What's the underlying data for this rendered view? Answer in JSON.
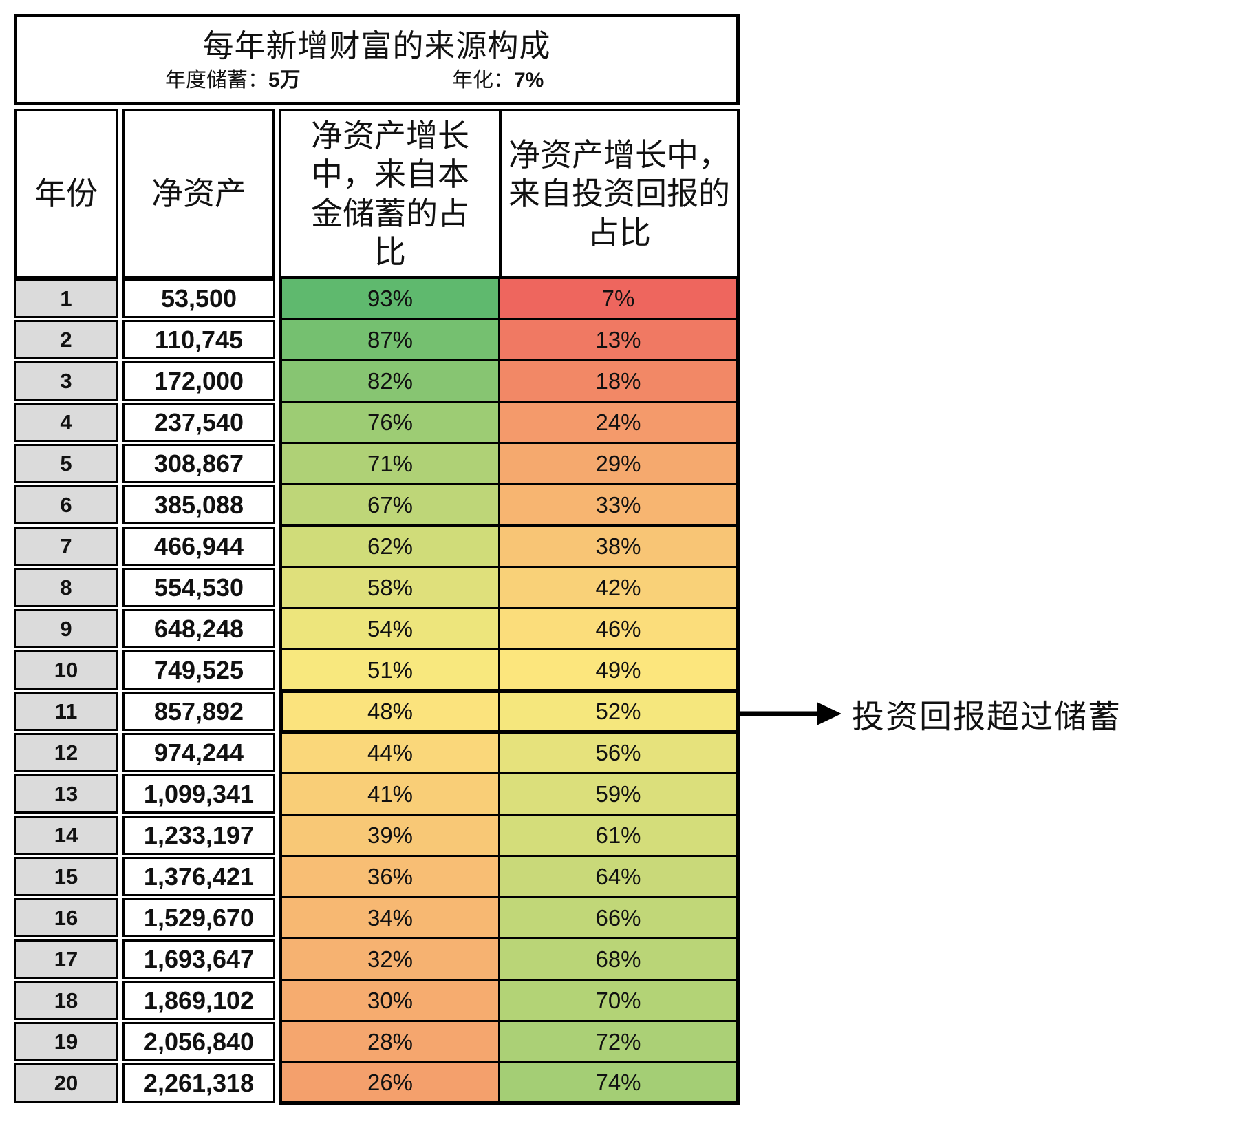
{
  "title_box": {
    "title": "每年新增财富的来源构成",
    "savings_label": "年度储蓄：",
    "savings_value": "5万",
    "rate_label": "年化：",
    "rate_value": "7%"
  },
  "table": {
    "headers": {
      "year": "年份",
      "net_worth": "净资产",
      "savings_share": "净资产增长\n中，来自本\n金储蓄的占\n比",
      "returns_share": "净资产增长中，\n来自投资回报的\n占比"
    }
  },
  "annotation": {
    "text": "投资回报超过储蓄"
  },
  "colors": {
    "scale_min": "#EC5159",
    "scale_mid": "#FCE97E",
    "scale_max": "#45B16B",
    "row_header_bg": "#DBDBDB",
    "border": "#000000"
  },
  "chart_data": {
    "type": "table",
    "title": "每年新增财富的来源构成",
    "params": {
      "annual_savings": "5万",
      "annual_return": "7%"
    },
    "columns": [
      "年份",
      "净资产",
      "净资产增长中，来自本金储蓄的占比",
      "净资产增长中，来自投资回报的占比"
    ],
    "rows": [
      [
        1,
        53500,
        93,
        7
      ],
      [
        2,
        110745,
        87,
        13
      ],
      [
        3,
        172000,
        82,
        18
      ],
      [
        4,
        237540,
        76,
        24
      ],
      [
        5,
        308867,
        71,
        29
      ],
      [
        6,
        385088,
        67,
        33
      ],
      [
        7,
        466944,
        62,
        38
      ],
      [
        8,
        554530,
        58,
        42
      ],
      [
        9,
        648248,
        54,
        46
      ],
      [
        10,
        749525,
        51,
        49
      ],
      [
        11,
        857892,
        48,
        52
      ],
      [
        12,
        974244,
        44,
        56
      ],
      [
        13,
        1099341,
        41,
        59
      ],
      [
        14,
        1233197,
        39,
        61
      ],
      [
        15,
        1376421,
        36,
        64
      ],
      [
        16,
        1529670,
        34,
        66
      ],
      [
        17,
        1693647,
        32,
        68
      ],
      [
        18,
        1869102,
        30,
        70
      ],
      [
        19,
        2056840,
        28,
        72
      ],
      [
        20,
        2261318,
        26,
        74
      ]
    ],
    "highlight_row": 11,
    "annotation": "投资回报超过储蓄",
    "color_scale_note": "percent cells use 3-color scale red(0%)-yellow(50%)-green(100%)"
  }
}
